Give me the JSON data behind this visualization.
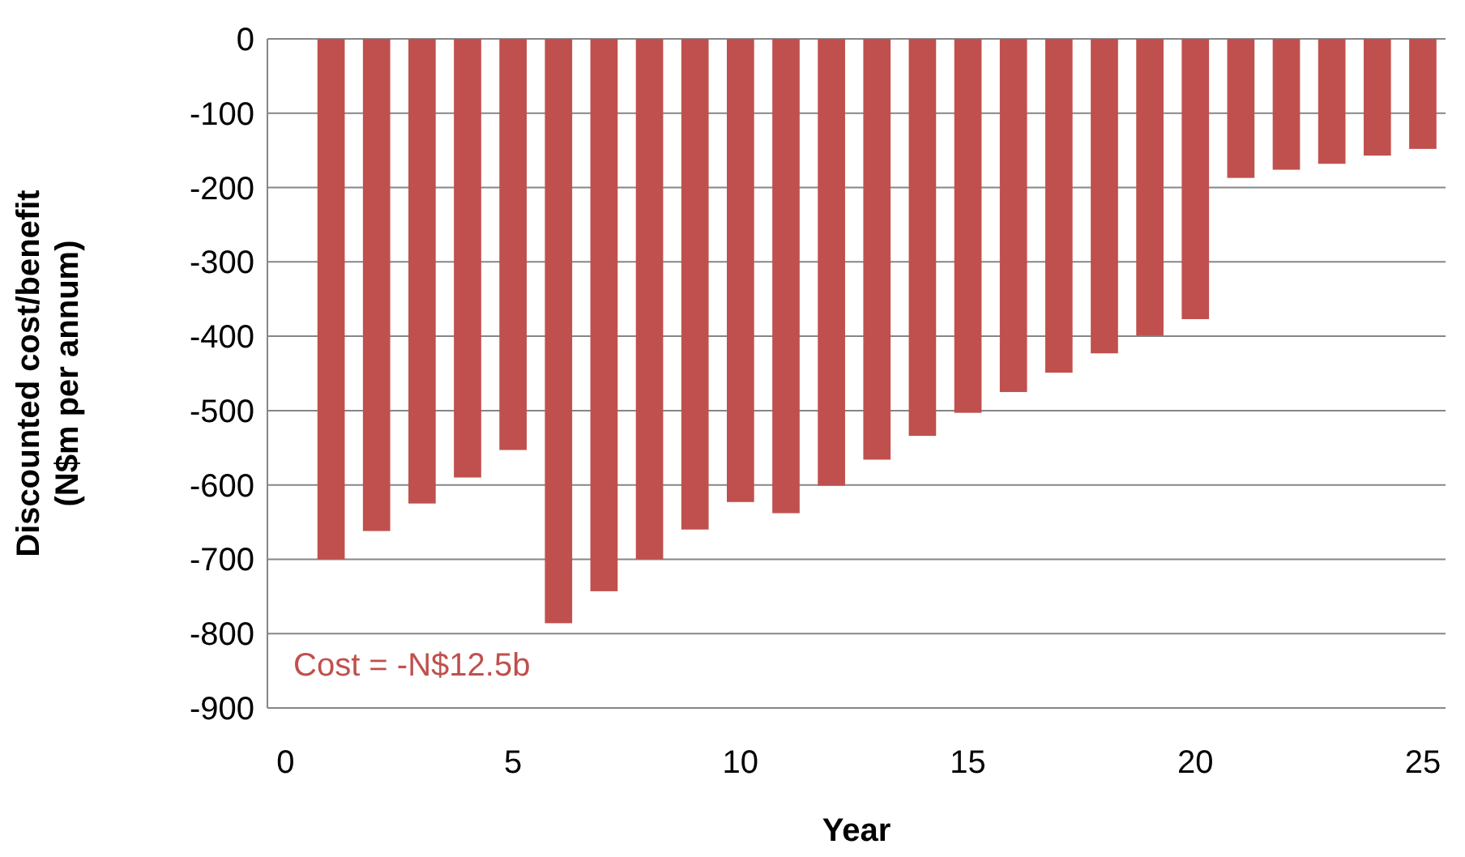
{
  "chart_data": {
    "type": "bar",
    "xlabel": "Year",
    "ylabel": "Discounted cost/benefit\n(N$m per annum)",
    "x": [
      1,
      2,
      3,
      4,
      5,
      6,
      7,
      8,
      9,
      10,
      11,
      12,
      13,
      14,
      15,
      16,
      17,
      18,
      19,
      20,
      21,
      22,
      23,
      24,
      25
    ],
    "values": [
      -700,
      -662,
      -625,
      -590,
      -553,
      -786,
      -743,
      -700,
      -660,
      -623,
      -638,
      -601,
      -566,
      -534,
      -503,
      -475,
      -449,
      -423,
      -399,
      -377,
      -187,
      -176,
      -168,
      -157,
      -148
    ],
    "color": "#c0504d",
    "xlim": [
      -0.4,
      25.5
    ],
    "xticks": [
      0,
      5,
      10,
      15,
      20,
      25
    ],
    "ylim": [
      -900,
      0
    ],
    "yticks": [
      -900,
      -800,
      -700,
      -600,
      -500,
      -400,
      -300,
      -200,
      -100,
      0
    ],
    "grid": "y",
    "annotations": [
      "Cost = -N$12.5b"
    ]
  }
}
